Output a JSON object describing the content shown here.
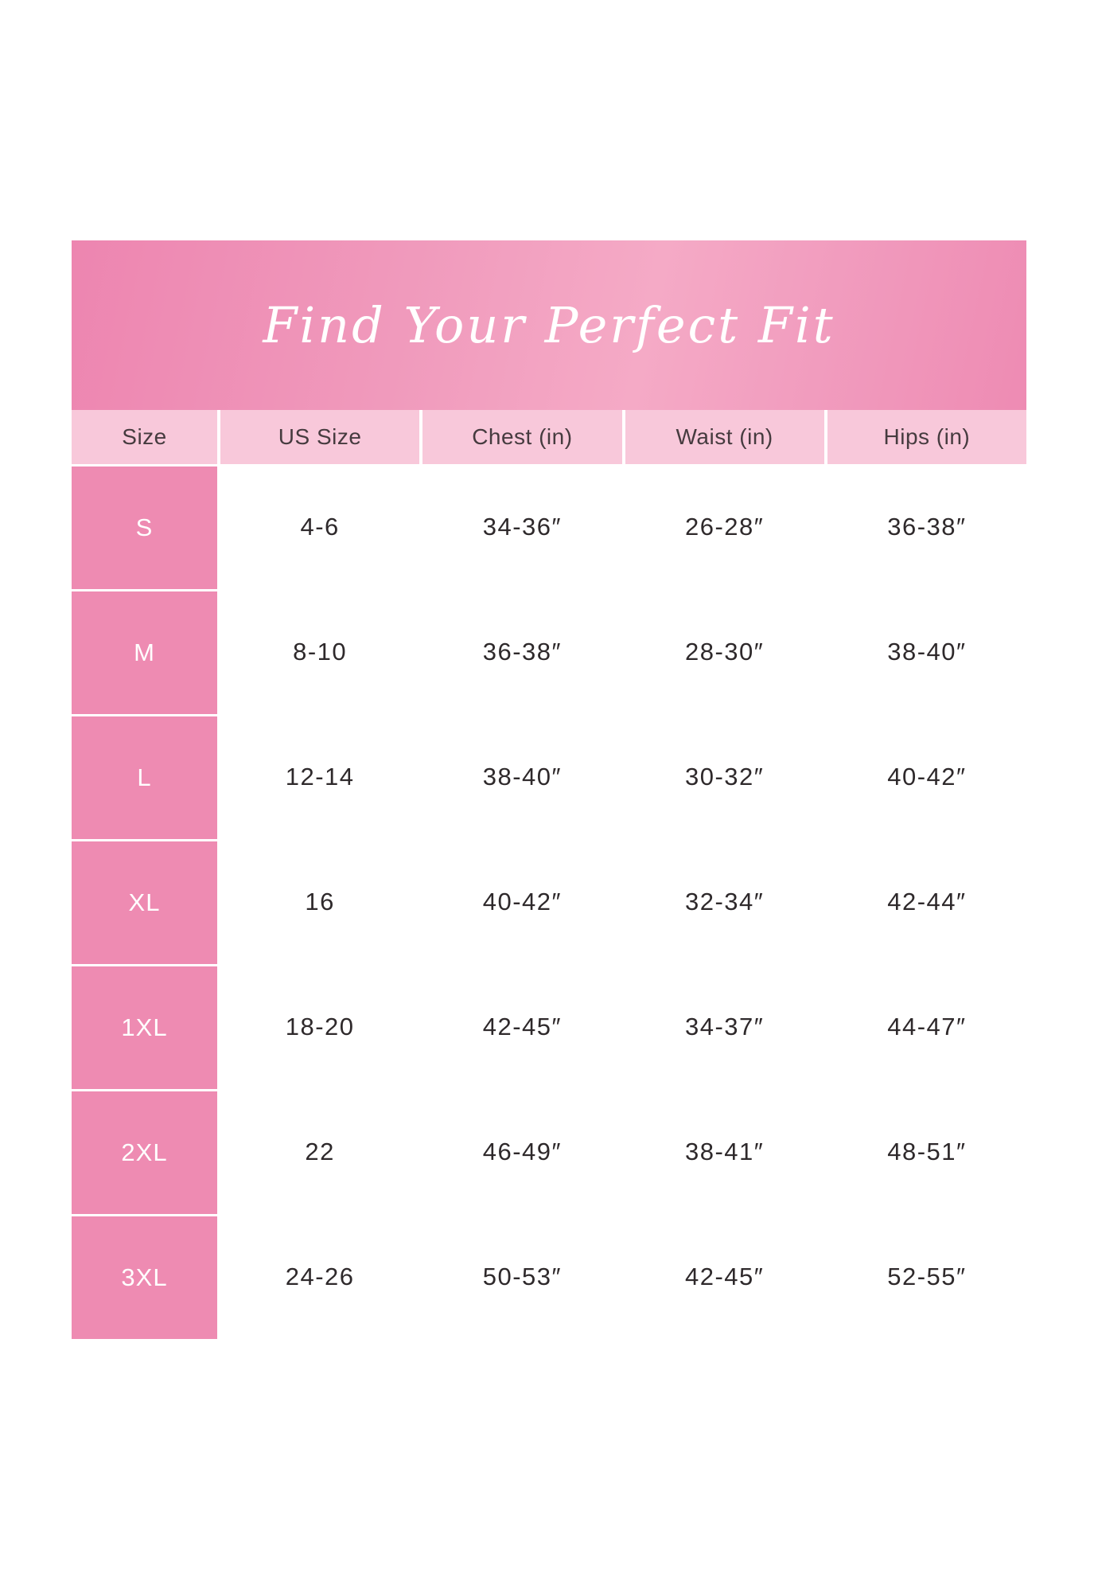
{
  "title": "Find Your Perfect Fit",
  "colors": {
    "banner_pink_dark": "#ed85b0",
    "banner_pink_light": "#f5aac6",
    "header_row_pink": "#f8c8da",
    "size_column_pink": "#ee8bb2",
    "title_text": "#ffffff",
    "body_text": "#2e292b",
    "background": "#ffffff"
  },
  "chart_data": {
    "type": "table",
    "title": "Find Your Perfect Fit",
    "columns": [
      "Size",
      "US Size",
      "Chest (in)",
      "Waist (in)",
      "Hips (in)"
    ],
    "rows": [
      [
        "S",
        "4-6",
        "34-36″",
        "26-28″",
        "36-38″"
      ],
      [
        "M",
        "8-10",
        "36-38″",
        "28-30″",
        "38-40″"
      ],
      [
        "L",
        "12-14",
        "38-40″",
        "30-32″",
        "40-42″"
      ],
      [
        "XL",
        "16",
        "40-42″",
        "32-34″",
        "42-44″"
      ],
      [
        "1XL",
        "18-20",
        "42-45″",
        "34-37″",
        "44-47″"
      ],
      [
        "2XL",
        "22",
        "46-49″",
        "38-41″",
        "48-51″"
      ],
      [
        "3XL",
        "24-26",
        "50-53″",
        "42-45″",
        "52-55″"
      ]
    ],
    "layout_hints": {
      "header_banner": "pink gradient, white italic serif title",
      "first_column_style": "pink cells with white labels, white divider gaps",
      "grid": "white gaps between header cells and between size-column rows"
    }
  }
}
